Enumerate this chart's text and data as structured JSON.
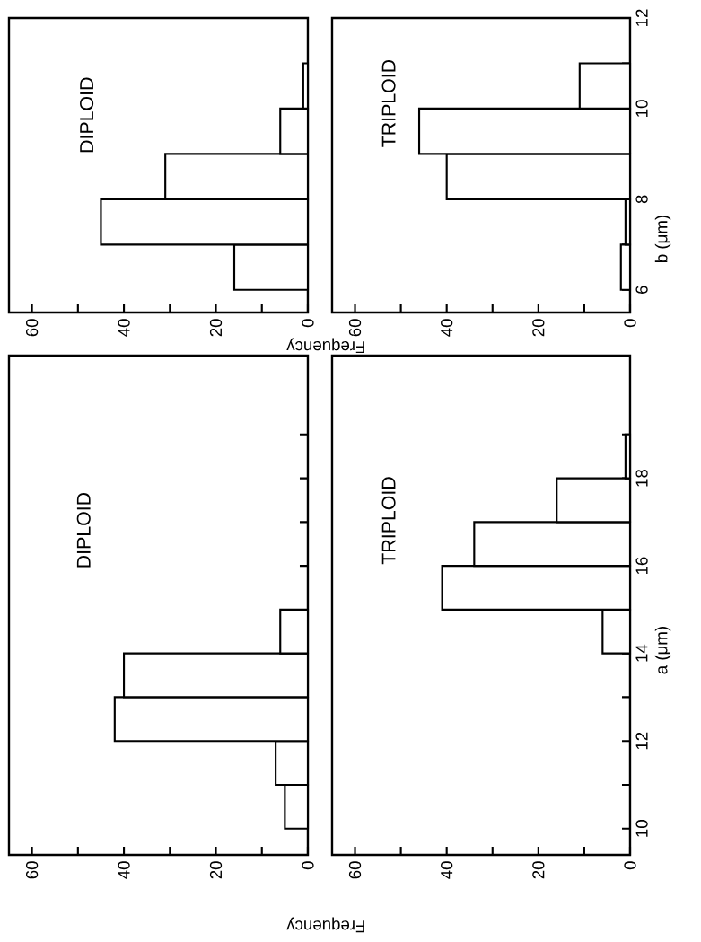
{
  "chart_data": [
    {
      "type": "histogram",
      "orientation": "horizontal",
      "title": "DIPLOID",
      "bins": [
        6,
        7,
        8,
        9,
        10,
        11
      ],
      "values": [
        16,
        45,
        31,
        6,
        1
      ],
      "color": "#000000",
      "ylim": [
        5.5,
        12
      ],
      "xlim": [
        65,
        0
      ],
      "xticks": [
        0,
        {
          "value": 10,
          "label": null
        },
        20,
        {
          "value": 30,
          "label": null
        },
        40,
        {
          "value": 50,
          "label": null
        },
        60
      ],
      "tick_labels": "x"
    },
    {
      "type": "histogram",
      "orientation": "horizontal",
      "title": "TRIPLOID",
      "xlabel": "Frequency",
      "ylabel": "b (μm)",
      "bins": [
        6,
        7,
        8,
        9,
        10,
        11
      ],
      "values": [
        2,
        1,
        40,
        46,
        11
      ],
      "color": "#000000",
      "ylim": [
        5.5,
        12
      ],
      "yticks": [
        6,
        {
          "value": 7,
          "label": null
        },
        8,
        {
          "value": 9,
          "label": null
        },
        10,
        {
          "value": 11,
          "label": null
        },
        12
      ],
      "xlim": [
        65,
        0
      ],
      "xticks": [
        0,
        {
          "value": 10,
          "label": null
        },
        20,
        {
          "value": 30,
          "label": null
        },
        40,
        {
          "value": 50,
          "label": null
        },
        60
      ]
    },
    {
      "type": "histogram",
      "orientation": "horizontal",
      "title": "DIPLOID",
      "bins": [
        10,
        11,
        12,
        13,
        14,
        15
      ],
      "values": [
        5,
        7,
        42,
        40,
        6
      ],
      "color": "#000000",
      "ylim": [
        9.4,
        20.8
      ],
      "yticks": [
        {
          "value": 16,
          "label": null
        },
        {
          "value": 17,
          "label": null
        },
        {
          "value": 18,
          "label": null
        },
        {
          "value": 19,
          "label": null
        }
      ],
      "xlim": [
        65,
        0
      ],
      "xticks": [
        0,
        {
          "value": 10,
          "label": null
        },
        20,
        {
          "value": 30,
          "label": null
        },
        40,
        {
          "value": 50,
          "label": null
        },
        60
      ],
      "tick_labels": "x"
    },
    {
      "type": "histogram",
      "orientation": "horizontal",
      "title": "TRIPLOID",
      "xlabel": "Frequency",
      "ylabel": "a (μm)",
      "bins": [
        14,
        15,
        16,
        17,
        18,
        19
      ],
      "values": [
        6,
        41,
        34,
        16,
        1
      ],
      "color": "#000000",
      "ylim": [
        9.4,
        20.8
      ],
      "yticks": [
        10,
        {
          "value": 11,
          "label": null
        },
        12,
        {
          "value": 13,
          "label": null
        },
        14,
        {
          "value": 15,
          "label": null
        },
        16,
        {
          "value": 17,
          "label": null
        },
        18,
        {
          "value": 19,
          "label": null
        }
      ],
      "xlim": [
        65,
        0
      ],
      "xticks": [
        0,
        {
          "value": 10,
          "label": null
        },
        20,
        {
          "value": 30,
          "label": null
        },
        40,
        {
          "value": 50,
          "label": null
        },
        60
      ]
    }
  ]
}
